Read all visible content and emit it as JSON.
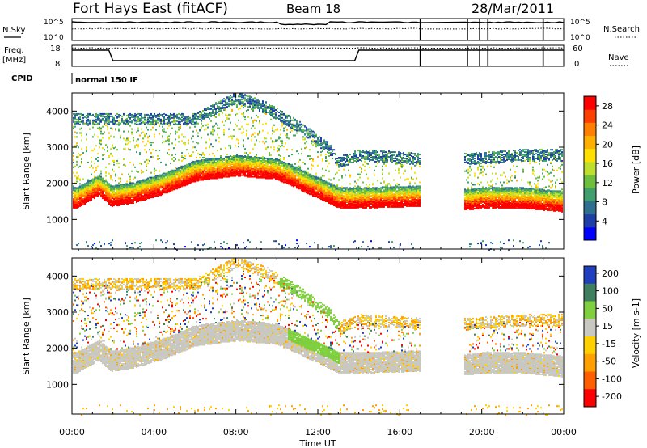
{
  "header": {
    "station": "Fort Hays East (fitACF)",
    "beam": "Beam 18",
    "date": "28/Mar/2011"
  },
  "side_labels": {
    "nsky": "N.Sky",
    "nsearch": "N.Search",
    "freq": "Freq.",
    "freq_unit": "[MHz]",
    "nave": "Nave",
    "cpid": "CPID",
    "cpid_value": "normal 150 IF"
  },
  "noise_axis": {
    "left_ticks": [
      "10^5",
      "10^0"
    ],
    "right_ticks": [
      "10^5",
      "10^0"
    ]
  },
  "freq_axis": {
    "left_ticks": [
      "18",
      "8"
    ],
    "right_ticks": [
      "60",
      "0"
    ]
  },
  "chart_data": [
    {
      "type": "heatmap",
      "panel": "power",
      "ylabel": "Slant Range [km]",
      "yticks": [
        1000,
        2000,
        3000,
        4000
      ],
      "ylim": [
        180,
        4500
      ],
      "xlim_hours": [
        0,
        24
      ],
      "colorbar": {
        "label": "Power [dB]",
        "ticks": [
          "28",
          "24",
          "20",
          "16",
          "12",
          "8",
          "4"
        ],
        "range": [
          0,
          30
        ],
        "colors": [
          "#0000ff",
          "#1f3fa8",
          "#2f6f8f",
          "#3f9f6f",
          "#6fbf3f",
          "#bfdf2f",
          "#ffdf00",
          "#ffaf00",
          "#ff7f00",
          "#ff3f00",
          "#ff0000"
        ]
      },
      "gaps_hours": [
        [
          17.0,
          19.1
        ]
      ],
      "main_band": [
        [
          0.2,
          1450
        ],
        [
          1.3,
          1800
        ],
        [
          1.9,
          1500
        ],
        [
          3,
          1600
        ],
        [
          4.5,
          1850
        ],
        [
          6,
          2200
        ],
        [
          8,
          2350
        ],
        [
          10,
          2250
        ],
        [
          11.5,
          1850
        ],
        [
          12.5,
          1600
        ],
        [
          13,
          1450
        ],
        [
          14,
          1450
        ],
        [
          16.9,
          1500
        ],
        [
          19.2,
          1400
        ],
        [
          20,
          1450
        ],
        [
          22,
          1450
        ],
        [
          24,
          1350
        ]
      ],
      "upper_band": [
        [
          6,
          3800
        ],
        [
          8,
          4400
        ],
        [
          9.5,
          4100
        ],
        [
          11,
          3600
        ],
        [
          12.5,
          3000
        ],
        [
          13,
          2600
        ],
        [
          14,
          2800
        ],
        [
          16.9,
          2700
        ],
        [
          19.5,
          2700
        ],
        [
          22,
          2800
        ],
        [
          24,
          2800
        ]
      ]
    },
    {
      "type": "heatmap",
      "panel": "velocity",
      "ylabel": "Slant Range [km]",
      "yticks": [
        1000,
        2000,
        3000,
        4000
      ],
      "ylim": [
        180,
        4500
      ],
      "xlim_hours": [
        0,
        24
      ],
      "xticks": [
        "00:00",
        "04:00",
        "08:00",
        "12:00",
        "16:00",
        "20:00",
        "00:00"
      ],
      "xlabel": "Time UT",
      "colorbar": {
        "label": "Velocity [m s-1]",
        "ticks": [
          "200",
          "100",
          "50",
          "15",
          "-15",
          "-50",
          "-100",
          "-200"
        ],
        "colors": [
          "#1f3fbf",
          "#3f7f5f",
          "#7fcf3f",
          "#c8c8c0",
          "#ffcf00",
          "#ff9f00",
          "#ff5f00",
          "#ff0000"
        ]
      },
      "gaps_hours": [
        [
          17.0,
          19.1
        ]
      ]
    }
  ]
}
